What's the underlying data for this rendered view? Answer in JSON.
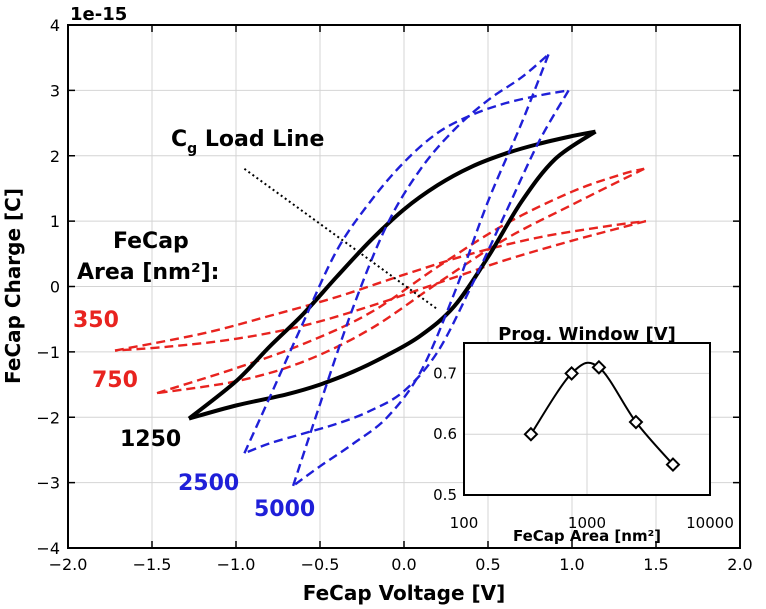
{
  "chart_data": [
    {
      "type": "line",
      "title": "",
      "xlabel": "FeCap Voltage [V]",
      "ylabel": "FeCap Charge [C]",
      "y_scale_label": "1e-15",
      "xlim": [
        -2.0,
        2.0
      ],
      "ylim": [
        -4,
        4
      ],
      "xticks": [
        -2.0,
        -1.5,
        -1.0,
        -0.5,
        0.0,
        0.5,
        1.0,
        1.5,
        2.0
      ],
      "xtick_labels": [
        "−2.0",
        "−1.5",
        "−1.0",
        "−0.5",
        "0.0",
        "0.5",
        "1.0",
        "1.5",
        "2.0"
      ],
      "yticks": [
        -4,
        -3,
        -2,
        -1,
        0,
        1,
        2,
        3,
        4
      ],
      "ytick_labels": [
        "−4",
        "−3",
        "−2",
        "−1",
        "0",
        "1",
        "2",
        "3",
        "4"
      ],
      "grid": true,
      "annotations": {
        "load_line_main": "C",
        "load_line_sub": "g",
        "load_line_rest": " Load Line",
        "area_line1": "FeCap",
        "area_line2": "Area [nm²]:"
      },
      "series": [
        {
          "name": "350",
          "color": "#e8231f",
          "dash": true,
          "upper": [
            [
              -1.72,
              -0.98
            ],
            [
              -1.2,
              -0.72
            ],
            [
              -0.8,
              -0.45
            ],
            [
              -0.4,
              -0.16
            ],
            [
              0.0,
              0.18
            ],
            [
              0.4,
              0.5
            ],
            [
              0.8,
              0.75
            ],
            [
              1.2,
              0.92
            ],
            [
              1.44,
              1.0
            ]
          ],
          "lower": [
            [
              1.44,
              1.0
            ],
            [
              1.0,
              0.7
            ],
            [
              0.6,
              0.4
            ],
            [
              0.2,
              0.05
            ],
            [
              -0.2,
              -0.3
            ],
            [
              -0.6,
              -0.6
            ],
            [
              -1.0,
              -0.8
            ],
            [
              -1.4,
              -0.92
            ],
            [
              -1.72,
              -0.98
            ]
          ]
        },
        {
          "name": "750",
          "color": "#e8231f",
          "dash": true,
          "upper": [
            [
              -1.47,
              -1.63
            ],
            [
              -1.0,
              -1.25
            ],
            [
              -0.6,
              -0.88
            ],
            [
              -0.2,
              -0.4
            ],
            [
              0.2,
              0.3
            ],
            [
              0.6,
              0.95
            ],
            [
              1.0,
              1.45
            ],
            [
              1.3,
              1.72
            ],
            [
              1.43,
              1.8
            ]
          ],
          "lower": [
            [
              1.43,
              1.8
            ],
            [
              1.0,
              1.25
            ],
            [
              0.6,
              0.72
            ],
            [
              0.2,
              0.05
            ],
            [
              -0.2,
              -0.65
            ],
            [
              -0.6,
              -1.15
            ],
            [
              -1.0,
              -1.45
            ],
            [
              -1.47,
              -1.63
            ]
          ]
        },
        {
          "name": "1250",
          "color": "#000000",
          "dash": false,
          "upper": [
            [
              -1.28,
              -2.02
            ],
            [
              -1.0,
              -1.45
            ],
            [
              -0.8,
              -0.92
            ],
            [
              -0.6,
              -0.42
            ],
            [
              -0.4,
              0.15
            ],
            [
              -0.2,
              0.7
            ],
            [
              0.0,
              1.18
            ],
            [
              0.2,
              1.55
            ],
            [
              0.4,
              1.83
            ],
            [
              0.6,
              2.03
            ],
            [
              0.8,
              2.18
            ],
            [
              1.0,
              2.3
            ],
            [
              1.14,
              2.37
            ]
          ],
          "lower": [
            [
              1.14,
              2.37
            ],
            [
              0.9,
              1.95
            ],
            [
              0.7,
              1.3
            ],
            [
              0.5,
              0.45
            ],
            [
              0.3,
              -0.3
            ],
            [
              0.1,
              -0.75
            ],
            [
              -0.1,
              -1.05
            ],
            [
              -0.3,
              -1.3
            ],
            [
              -0.5,
              -1.5
            ],
            [
              -0.7,
              -1.65
            ],
            [
              -1.0,
              -1.82
            ],
            [
              -1.28,
              -2.02
            ]
          ]
        },
        {
          "name": "2500",
          "color": "#1f1fd8",
          "dash": true,
          "upper": [
            [
              -0.95,
              -2.55
            ],
            [
              -0.8,
              -1.7
            ],
            [
              -0.6,
              -0.55
            ],
            [
              -0.4,
              0.55
            ],
            [
              -0.2,
              1.3
            ],
            [
              0.0,
              1.9
            ],
            [
              0.2,
              2.35
            ],
            [
              0.4,
              2.62
            ],
            [
              0.6,
              2.8
            ],
            [
              0.8,
              2.92
            ],
            [
              0.98,
              3.0
            ]
          ],
          "lower": [
            [
              0.98,
              3.0
            ],
            [
              0.8,
              2.2
            ],
            [
              0.6,
              1.1
            ],
            [
              0.4,
              0.0
            ],
            [
              0.2,
              -1.0
            ],
            [
              0.0,
              -1.6
            ],
            [
              -0.2,
              -1.9
            ],
            [
              -0.4,
              -2.1
            ],
            [
              -0.6,
              -2.25
            ],
            [
              -0.8,
              -2.4
            ],
            [
              -0.95,
              -2.55
            ]
          ]
        },
        {
          "name": "5000",
          "color": "#1f1fd8",
          "dash": true,
          "upper": [
            [
              -0.66,
              -3.05
            ],
            [
              -0.5,
              -1.8
            ],
            [
              -0.3,
              -0.3
            ],
            [
              -0.1,
              0.95
            ],
            [
              0.1,
              1.8
            ],
            [
              0.3,
              2.4
            ],
            [
              0.5,
              2.85
            ],
            [
              0.7,
              3.2
            ],
            [
              0.86,
              3.55
            ]
          ],
          "lower": [
            [
              0.86,
              3.55
            ],
            [
              0.7,
              2.5
            ],
            [
              0.5,
              1.3
            ],
            [
              0.3,
              -0.1
            ],
            [
              0.1,
              -1.3
            ],
            [
              -0.1,
              -2.0
            ],
            [
              -0.3,
              -2.4
            ],
            [
              -0.5,
              -2.75
            ],
            [
              -0.66,
              -3.05
            ]
          ]
        }
      ],
      "load_line": [
        [
          -0.95,
          1.8
        ],
        [
          0.2,
          -0.35
        ]
      ]
    },
    {
      "type": "line",
      "title": "Prog. Window [V]",
      "xlabel": "FeCap Area [nm²]",
      "x_scale": "log",
      "xlim": [
        100,
        10000
      ],
      "ylim": [
        0.5,
        0.75
      ],
      "xticks": [
        100,
        1000,
        10000
      ],
      "xtick_labels": [
        "100",
        "1000",
        "10000"
      ],
      "yticks": [
        0.5,
        0.6,
        0.7
      ],
      "ytick_labels": [
        "0.5",
        "0.6",
        "0.7"
      ],
      "marker": "diamond",
      "x": [
        350,
        750,
        1250,
        2500,
        5000
      ],
      "y": [
        0.6,
        0.7,
        0.71,
        0.62,
        0.55
      ]
    }
  ]
}
